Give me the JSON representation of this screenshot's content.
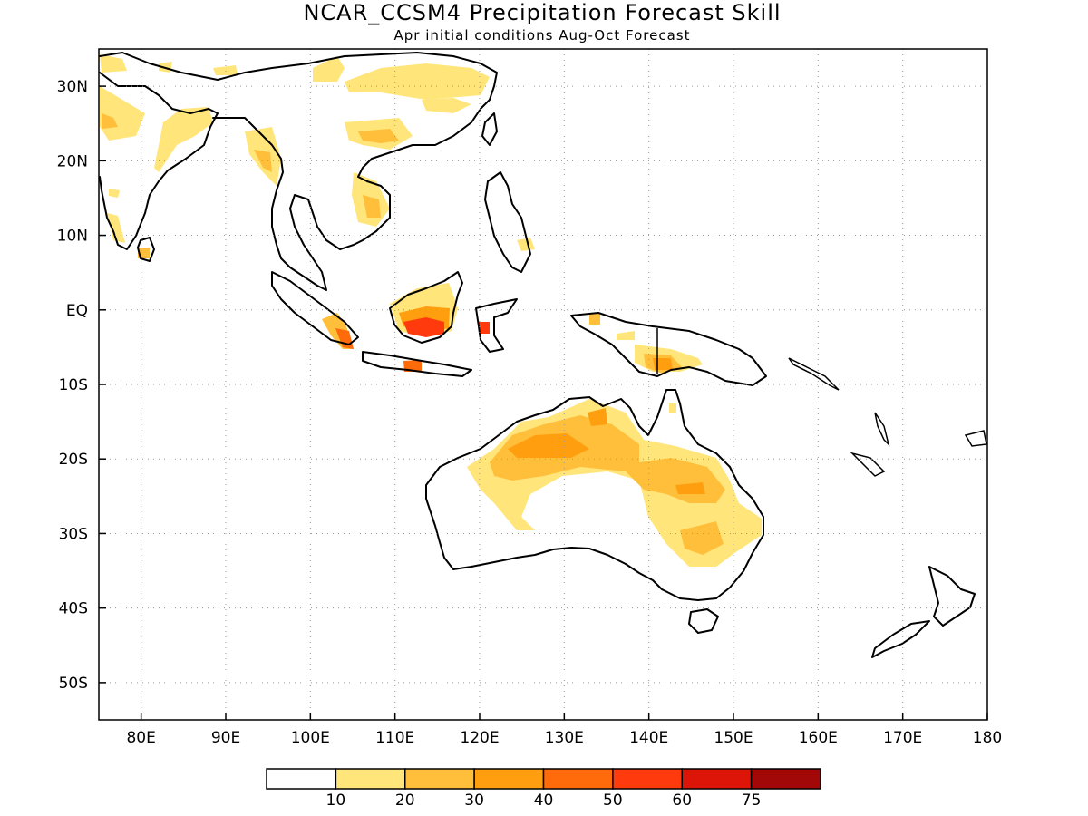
{
  "title": "NCAR_CCSM4 Precipitation Forecast Skill",
  "subtitle": "Apr initial conditions  Aug-Oct Forecast",
  "map": {
    "lon_range": [
      75,
      180
    ],
    "lat_range": [
      -55,
      35
    ],
    "lon_ticks": [
      {
        "value": 80,
        "label": "80E"
      },
      {
        "value": 90,
        "label": "90E"
      },
      {
        "value": 100,
        "label": "100E"
      },
      {
        "value": 110,
        "label": "110E"
      },
      {
        "value": 120,
        "label": "120E"
      },
      {
        "value": 130,
        "label": "130E"
      },
      {
        "value": 140,
        "label": "140E"
      },
      {
        "value": 150,
        "label": "150E"
      },
      {
        "value": 160,
        "label": "160E"
      },
      {
        "value": 170,
        "label": "170E"
      },
      {
        "value": 180,
        "label": "180"
      }
    ],
    "lat_ticks": [
      {
        "value": 30,
        "label": "30N"
      },
      {
        "value": 20,
        "label": "20N"
      },
      {
        "value": 10,
        "label": "10N"
      },
      {
        "value": 0,
        "label": "EQ"
      },
      {
        "value": -10,
        "label": "10S"
      },
      {
        "value": -20,
        "label": "20S"
      },
      {
        "value": -30,
        "label": "30S"
      },
      {
        "value": -40,
        "label": "40S"
      },
      {
        "value": -50,
        "label": "50S"
      }
    ],
    "gridlines": true
  },
  "colorbar": {
    "colors": [
      "#ffffff",
      "#ffe57a",
      "#ffbf3b",
      "#ff9f0f",
      "#ff6a0a",
      "#ff3a0d",
      "#dd1508",
      "#a30808"
    ],
    "labels": [
      "10",
      "20",
      "30",
      "40",
      "50",
      "60",
      "75"
    ]
  }
}
